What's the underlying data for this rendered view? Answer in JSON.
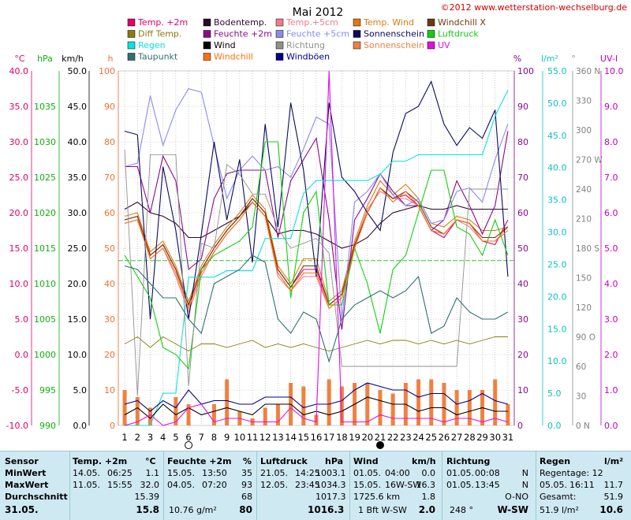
{
  "header": {
    "title": "Mai 2012",
    "copyright": "©2012 www.wetterstation-wechselburg.de"
  },
  "legend": [
    {
      "label": "Temp. +2m",
      "color": "#e0006e"
    },
    {
      "label": "Bodentemp.",
      "color": "#2a0a2a"
    },
    {
      "label": "Temp.+5cm",
      "color": "#f07a8a"
    },
    {
      "label": "Temp. Wind",
      "color": "#e07a10"
    },
    {
      "label": "Windchill X",
      "color": "#6a3a10"
    },
    {
      "label": "Diff Temp.",
      "color": "#8a7a10"
    },
    {
      "label": "Feuchte +2m",
      "color": "#8a0a8a"
    },
    {
      "label": "Feuchte +5cm",
      "color": "#8a8af0"
    },
    {
      "label": "Sonnenschein",
      "color": "#0a0a60"
    },
    {
      "label": "Luftdruck",
      "color": "#10d010"
    },
    {
      "label": "Regen",
      "color": "#10e0e0"
    },
    {
      "label": "Wind",
      "color": "#000000"
    },
    {
      "label": "Richtung",
      "color": "#909090"
    },
    {
      "label": "Sonnenschein",
      "color": "#f08040"
    },
    {
      "label": "UV",
      "color": "#e010e0"
    },
    {
      "label": "Taupunkt",
      "color": "#307070"
    },
    {
      "label": "Windchill",
      "color": "#ff7010"
    },
    {
      "label": "Windböen",
      "color": "#00008a"
    }
  ],
  "axes": {
    "units_left": [
      "°C",
      "hPa",
      "km/h",
      "h"
    ],
    "units_right": [
      "%",
      "l/m²",
      "°",
      "UV-I"
    ],
    "temp_ticks": [
      "40.0",
      "35.0",
      "30.0",
      "25.0",
      "20.0",
      "15.0",
      "10.0",
      "5.0",
      "0.0",
      "-5.0",
      "-10.0"
    ],
    "pressure_ticks": [
      "1035",
      "1030",
      "1025",
      "1020",
      "1015",
      "1010",
      "1005",
      "1000",
      "995",
      "990"
    ],
    "wind_ticks": [
      "50.0",
      "45.0",
      "40.0",
      "35.0",
      "30.0",
      "25.0",
      "20.0",
      "15.0",
      "10.0",
      "5.0",
      "0.0"
    ],
    "sun_ticks": [
      "100",
      "90",
      "80",
      "70",
      "60",
      "50",
      "40",
      "30",
      "20",
      "10",
      "0"
    ],
    "hum_ticks": [
      "100",
      "90",
      "80",
      "70",
      "60",
      "50",
      "40",
      "30",
      "20",
      "10",
      "0"
    ],
    "rain_ticks": [
      "55.0",
      "50.0",
      "45.0",
      "40.0",
      "35.0",
      "30.0",
      "25.0",
      "20.0",
      "15.0",
      "10.0",
      "5.0",
      "0.0"
    ],
    "dir_ticks": [
      "360 N",
      "330",
      "300",
      "270 W",
      "240",
      "210",
      "180 S",
      "150",
      "120",
      "90 O",
      "60",
      "30",
      "0 N"
    ],
    "uv_ticks": [
      "10.0",
      "9.0",
      "8.0",
      "7.0",
      "6.0",
      "5.0",
      "4.0",
      "3.0",
      "2.0",
      "1.0",
      "0.0"
    ],
    "days": [
      "1",
      "2",
      "3",
      "4",
      "5",
      "6",
      "7",
      "8",
      "9",
      "10",
      "11",
      "12",
      "13",
      "14",
      "15",
      "16",
      "17",
      "18",
      "19",
      "20",
      "21",
      "22",
      "23",
      "24",
      "25",
      "26",
      "27",
      "28",
      "29",
      "30",
      "31"
    ]
  },
  "chart_data": {
    "type": "line",
    "title": "Mai 2012",
    "x": [
      1,
      2,
      3,
      4,
      5,
      6,
      7,
      8,
      9,
      10,
      11,
      12,
      13,
      14,
      15,
      16,
      17,
      18,
      19,
      20,
      21,
      22,
      23,
      24,
      25,
      26,
      27,
      28,
      29,
      30,
      31
    ],
    "moon_phases": [
      {
        "day": 6,
        "phase": "full"
      },
      {
        "day": 21,
        "phase": "new"
      }
    ],
    "series": [
      {
        "name": "Temp. +2m",
        "color": "#e0006e",
        "axis": "temp",
        "values": [
          19,
          19.5,
          14,
          15.5,
          12,
          7,
          12,
          15,
          17.5,
          19.5,
          22,
          20,
          12,
          9.5,
          12,
          12,
          7,
          8.5,
          15,
          20,
          23.5,
          22,
          22.5,
          21,
          17.5,
          16.5,
          19,
          18.5,
          16,
          15.5,
          19
        ]
      },
      {
        "name": "Bodentemp.",
        "color": "#2a0a2a",
        "axis": "temp",
        "values": [
          20.5,
          21.5,
          20,
          19.5,
          18.5,
          16.5,
          16.5,
          17.5,
          18.5,
          19.5,
          21.5,
          19.5,
          17,
          17.5,
          17.5,
          17,
          16,
          15,
          15.5,
          16.5,
          18.5,
          20,
          20.5,
          21,
          20.5,
          20.5,
          21,
          20.5,
          20.5,
          20.5,
          20.5
        ]
      },
      {
        "name": "Temp.+5cm",
        "color": "#f07a8a",
        "axis": "temp",
        "values": [
          18.5,
          19,
          13.5,
          15,
          11,
          6,
          11,
          14.5,
          17,
          19,
          21.5,
          19.5,
          11,
          9,
          11,
          11,
          6.5,
          8,
          15.5,
          20.5,
          23,
          22,
          22,
          21,
          17.5,
          17,
          19,
          18,
          16,
          16,
          18
        ]
      },
      {
        "name": "Temp. Wind",
        "color": "#e07a10",
        "axis": "temp",
        "values": [
          19.5,
          20,
          14.5,
          16,
          12.5,
          7.5,
          12.5,
          15.5,
          18,
          20,
          22.5,
          20.5,
          12.5,
          10,
          13.5,
          13.5,
          7.5,
          9,
          16,
          21,
          24.5,
          22.5,
          24,
          22,
          18.5,
          18,
          19.5,
          19,
          17.5,
          17.5,
          18
        ]
      },
      {
        "name": "Windchill X",
        "color": "#6a3a10",
        "axis": "temp",
        "values": [
          19,
          19.5,
          14,
          15.5,
          12,
          7,
          12,
          15,
          17.5,
          19.5,
          22,
          20,
          12,
          9.5,
          12.5,
          12.5,
          7,
          8.5,
          15.5,
          20,
          23.5,
          22,
          23,
          21.5,
          18,
          17,
          19,
          18.5,
          16.5,
          16.5,
          18
        ]
      },
      {
        "name": "Diff Temp.",
        "color": "#8a7a10",
        "axis": "temp",
        "values": [
          1.5,
          2.5,
          1,
          2.5,
          1.5,
          0.5,
          1.5,
          1.5,
          1,
          1.5,
          2,
          1,
          1.5,
          1,
          1.5,
          1,
          0.5,
          1,
          1.5,
          2,
          1.5,
          2,
          2,
          1.5,
          2,
          1.5,
          2,
          1.5,
          2,
          2.5,
          2.5
        ]
      },
      {
        "name": "Feuchte +2m",
        "color": "#8a0a8a",
        "axis": "hum",
        "values": [
          73,
          73,
          60,
          76,
          69,
          44,
          47,
          64,
          71,
          72,
          72,
          72,
          53,
          69,
          75,
          81,
          58,
          27,
          58,
          64,
          71,
          66,
          62,
          62,
          55,
          58,
          69,
          62,
          54,
          62,
          83
        ]
      },
      {
        "name": "Feuchte +5cm",
        "color": "#8a8af0",
        "axis": "hum",
        "values": [
          73,
          74,
          93,
          79,
          89,
          95,
          94,
          79,
          64,
          72,
          76,
          72,
          73,
          70,
          78,
          87,
          85,
          30,
          63,
          66,
          71,
          65,
          62,
          64,
          57,
          58,
          66,
          67,
          63,
          75,
          85
        ]
      },
      {
        "name": "Sonnenschein",
        "color": "#0a0a60",
        "axis": "sun",
        "values": [
          83,
          82,
          30,
          73,
          55,
          30,
          54,
          80,
          58,
          75,
          46,
          85,
          56,
          91,
          72,
          42,
          91,
          70,
          66,
          60,
          55,
          77,
          88,
          90,
          97,
          85,
          79,
          84,
          81,
          89,
          42
        ]
      },
      {
        "name": "Luftdruck",
        "color": "#10d010",
        "axis": "pressure",
        "values": [
          1014,
          1011,
          1008,
          1001,
          1000,
          998,
          1012,
          1014,
          1015,
          1016,
          1018,
          1030,
          1030,
          1008,
          1020,
          1023,
          1007,
          1007,
          1015,
          1010,
          1003,
          1012,
          1014,
          1020,
          1026,
          1026,
          1018,
          1017,
          1014,
          1019,
          1014
        ]
      },
      {
        "name": "Regen",
        "color": "#10e0e0",
        "axis": "rain",
        "values": [
          0,
          0,
          0,
          5,
          5,
          23,
          23,
          23,
          24,
          24,
          24,
          29,
          29,
          29,
          36,
          38,
          38,
          38,
          38,
          38,
          39,
          41,
          41,
          42,
          42,
          42,
          42,
          42,
          42,
          48,
          52
        ]
      },
      {
        "name": "Wind",
        "color": "#000000",
        "axis": "wind",
        "values": [
          1.5,
          2.5,
          1,
          3,
          1.5,
          2.5,
          1.5,
          2,
          2.5,
          2,
          1.5,
          3,
          3,
          3,
          1.5,
          2,
          1.5,
          2,
          3,
          4,
          3.5,
          3,
          3,
          2,
          2.5,
          2.5,
          1.5,
          2,
          2.5,
          2,
          2
        ]
      },
      {
        "name": "Windböen",
        "color": "#00008a",
        "axis": "wind",
        "values": [
          3,
          3.5,
          2,
          3.5,
          2.5,
          5,
          3,
          3.5,
          3.5,
          3,
          3,
          4,
          4,
          4,
          2.5,
          3,
          3,
          3.5,
          5,
          6,
          5.5,
          5,
          5,
          4,
          4.5,
          4.5,
          3,
          3.5,
          4.5,
          3.5,
          3
        ]
      },
      {
        "name": "Richtung",
        "color": "#909090",
        "axis": "dir",
        "values": [
          280,
          30,
          275,
          275,
          275,
          40,
          185,
          180,
          265,
          255,
          235,
          235,
          200,
          180,
          185,
          190,
          175,
          60,
          60,
          60,
          60,
          60,
          60,
          60,
          60,
          60,
          60,
          240,
          240,
          240,
          240
        ]
      },
      {
        "name": "Taupunkt",
        "color": "#307070",
        "axis": "temp",
        "values": [
          12.5,
          12,
          10,
          8,
          8,
          5,
          3,
          10,
          11,
          12,
          14,
          13,
          5,
          3,
          6,
          5,
          -1,
          5,
          7,
          8,
          9,
          8,
          9,
          11,
          3,
          4,
          8,
          6,
          5,
          5,
          6
        ]
      },
      {
        "name": "Windchill",
        "color": "#ff7010",
        "axis": "temp",
        "values": [
          18.5,
          19,
          13.5,
          15,
          11.5,
          6.5,
          11.5,
          14.5,
          17,
          19,
          21.5,
          19.5,
          11.5,
          9,
          11.5,
          11.5,
          6.5,
          8,
          15,
          20,
          23.5,
          21.5,
          23,
          21,
          17.5,
          17,
          19,
          18.5,
          16,
          16,
          17.5
        ]
      },
      {
        "name": "UV",
        "color": "#e010e0",
        "axis": "uv",
        "values": [
          0,
          0.1,
          0.3,
          0,
          0.1,
          0.5,
          0.6,
          0.1,
          0.2,
          0.2,
          0.1,
          0.1,
          0.1,
          0.5,
          0.2,
          0.1,
          10,
          0.1,
          0.1,
          0.1,
          0.3,
          0.2,
          0.2,
          0.2,
          0.2,
          0.1,
          0.2,
          0.2,
          0.1,
          0.2,
          0.1
        ]
      }
    ],
    "bars": {
      "name": "Sonnenschein",
      "color": "#f08040",
      "axis": "sun",
      "values": [
        10,
        8,
        5,
        0,
        8,
        6,
        0,
        6,
        13,
        4,
        2,
        5,
        6,
        12,
        11,
        3,
        13,
        11,
        12,
        12,
        10,
        9,
        12,
        13,
        13,
        12,
        10,
        10,
        10,
        13,
        6
      ]
    },
    "reference_lines": [
      {
        "color": "#40c040",
        "axis": "pressure",
        "value": 1013.25
      }
    ]
  },
  "summary": {
    "sensor": {
      "title": "Sensor",
      "rows": [
        "MinWert",
        "MaxWert",
        "Durchschnitt",
        "31.05."
      ]
    },
    "temp": {
      "title": "Temp. +2m",
      "unit": "°C",
      "min_date": "14.05.",
      "min_time": "06:25",
      "min_val": "1.1",
      "max_date": "11.05.",
      "max_time": "15:55",
      "max_val": "32.0",
      "avg": "15.39",
      "today": "15.8"
    },
    "humidity": {
      "title": "Feuchte +2m",
      "unit": "%",
      "min_date": "15.05.",
      "min_time": "13:50",
      "min_val": "35",
      "max_date": "04.05.",
      "max_time": "07:20",
      "max_val": "93",
      "avg": "68",
      "today_extra": "10.76 g/m²",
      "today": "80"
    },
    "pressure": {
      "title": "Luftdruck",
      "unit": "hPa",
      "min_date": "21.05.",
      "min_time": "14:25",
      "min_val": "1003.1",
      "max_date": "12.05.",
      "max_time": "23:45",
      "max_val": "1034.3",
      "avg": "1017.3",
      "today": "1016.3"
    },
    "wind": {
      "title": "Wind",
      "unit": "km/h",
      "min_date": "01.05.",
      "min_time": "04:00",
      "min_val": "0.0",
      "max_date": "15.05.",
      "max_extra": "16W-SW",
      "max_val": "16.3",
      "avg_extra": "1725.6 km",
      "avg": "1.8",
      "today_extra": "1 Bft W-SW",
      "today": "2.0"
    },
    "direction": {
      "title": "Richtung",
      "min_date": "01.05.",
      "min_time": "00:08",
      "min_val": "N",
      "max_date": "01.05.",
      "max_time": "13:45",
      "max_val": "N",
      "avg": "O-NO",
      "today_extra": "248 °",
      "today": "W-SW"
    },
    "rain": {
      "title": "Regen",
      "unit": "l/m²",
      "r1": "Regentage: 12",
      "r2_date": "05.05.",
      "r2_time": "16:11",
      "r2_val": "11.7",
      "r3": "Gesamt:",
      "r3_val": "51.9",
      "r4": "51.9 l/m²",
      "today": "10.6"
    }
  }
}
